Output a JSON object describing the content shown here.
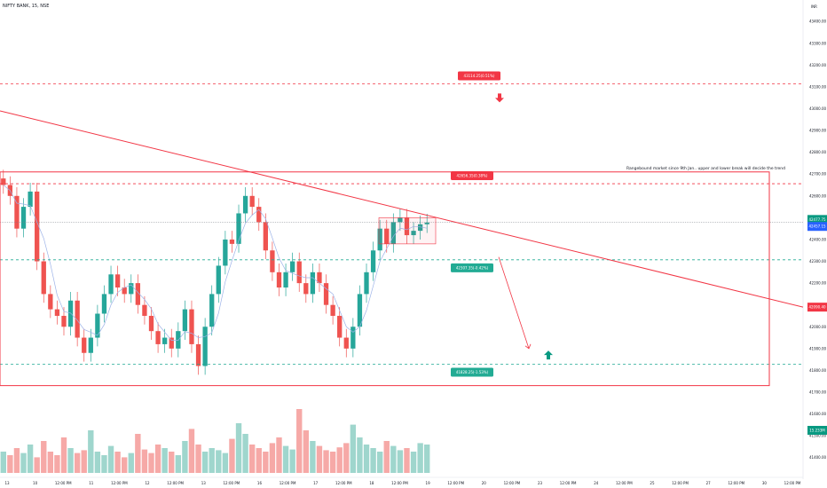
{
  "header": {
    "symbol": "NIFTY BANK, 15, NSE",
    "currency": "INR"
  },
  "chart_data": {
    "type": "candlestick",
    "ylim": [
      41350,
      43470
    ],
    "y_ticks": [
      "43400.00",
      "43300.00",
      "43200.00",
      "43100.00",
      "43000.00",
      "42900.00",
      "42800.00",
      "42700.00",
      "42600.00",
      "42500.00",
      "42400.00",
      "42300.00",
      "42200.00",
      "42100.00",
      "42000.00",
      "41900.00",
      "41800.00",
      "41700.00",
      "41600.00",
      "41500.00",
      "41400.00"
    ],
    "x_ticks": [
      "13",
      "10",
      "12:00 PM",
      "11",
      "12:00 PM",
      "12",
      "12:00 PM",
      "13",
      "12:00 PM",
      "16",
      "12:00 PM",
      "17",
      "12:00 PM",
      "18",
      "12:00 PM",
      "19",
      "12:00 PM",
      "20",
      "12:00 PM",
      "23",
      "12:00 PM",
      "24",
      "12:00 PM",
      "25",
      "12:00 PM",
      "27",
      "12:00 PM",
      "30",
      "12:00 PM"
    ],
    "price_labels": {
      "current": "42477.75",
      "previous": "42457.15",
      "trendline": "42090.40",
      "volume": "15.233M"
    },
    "horizontal_levels": [
      {
        "value": 43114,
        "label": "43114.25(0.51%)",
        "color": "#f23645"
      },
      {
        "value": 42656,
        "label": "42656.35(0.38%)",
        "color": "#f23645"
      },
      {
        "value": 42307,
        "label": "42307.35(-0.42%)",
        "color": "#22ab94"
      },
      {
        "value": 41828,
        "label": "41828.25(-1.53%)",
        "color": "#22ab94"
      }
    ],
    "annotation": "Rangebound market since 9th Jan.. upper and lower break will decide the trend",
    "range_box": {
      "top": 42710,
      "bottom": 41730
    },
    "trendline": {
      "start": 42990,
      "end": 42090
    },
    "consolidation_box": {
      "top": 42500,
      "bottom": 42380
    },
    "bullish_arrow_level": 41850,
    "bearish_arrow_level": 43090,
    "projection": {
      "from": 42320,
      "to": 41900
    },
    "close_points": [
      42650,
      42600,
      42450,
      42550,
      42620,
      42300,
      42150,
      42080,
      42050,
      42000,
      42120,
      41950,
      41880,
      41950,
      42060,
      42150,
      42240,
      42180,
      42150,
      42200,
      42100,
      42050,
      41980,
      41920,
      41950,
      41900,
      41980,
      42080,
      41920,
      41820,
      42000,
      42150,
      42280,
      42400,
      42380,
      42520,
      42600,
      42550,
      42480,
      42350,
      42250,
      42180,
      42250,
      42300,
      42200,
      42150,
      42250,
      42200,
      42100,
      42050,
      41950,
      41900,
      42000,
      42150,
      42250,
      42350,
      42450,
      42380,
      42480,
      42500,
      42420,
      42440,
      42470,
      42478
    ],
    "volume_points": [
      0.3,
      0.25,
      0.35,
      0.28,
      0.4,
      0.22,
      0.45,
      0.3,
      0.25,
      0.5,
      0.35,
      0.28,
      0.32,
      0.6,
      0.3,
      0.25,
      0.38,
      0.3,
      0.22,
      0.28,
      0.55,
      0.33,
      0.28,
      0.4,
      0.35,
      0.3,
      0.25,
      0.45,
      0.62,
      0.4,
      0.3,
      0.35,
      0.32,
      0.28,
      0.48,
      0.7,
      0.55,
      0.4,
      0.35,
      0.3,
      0.42,
      0.5,
      0.38,
      0.33,
      0.9,
      0.6,
      0.45,
      0.38,
      0.32,
      0.3,
      0.36,
      0.42,
      0.68,
      0.5,
      0.4,
      0.35,
      0.3,
      0.45,
      0.38,
      0.32,
      0.35,
      0.3,
      0.42,
      0.4
    ]
  }
}
